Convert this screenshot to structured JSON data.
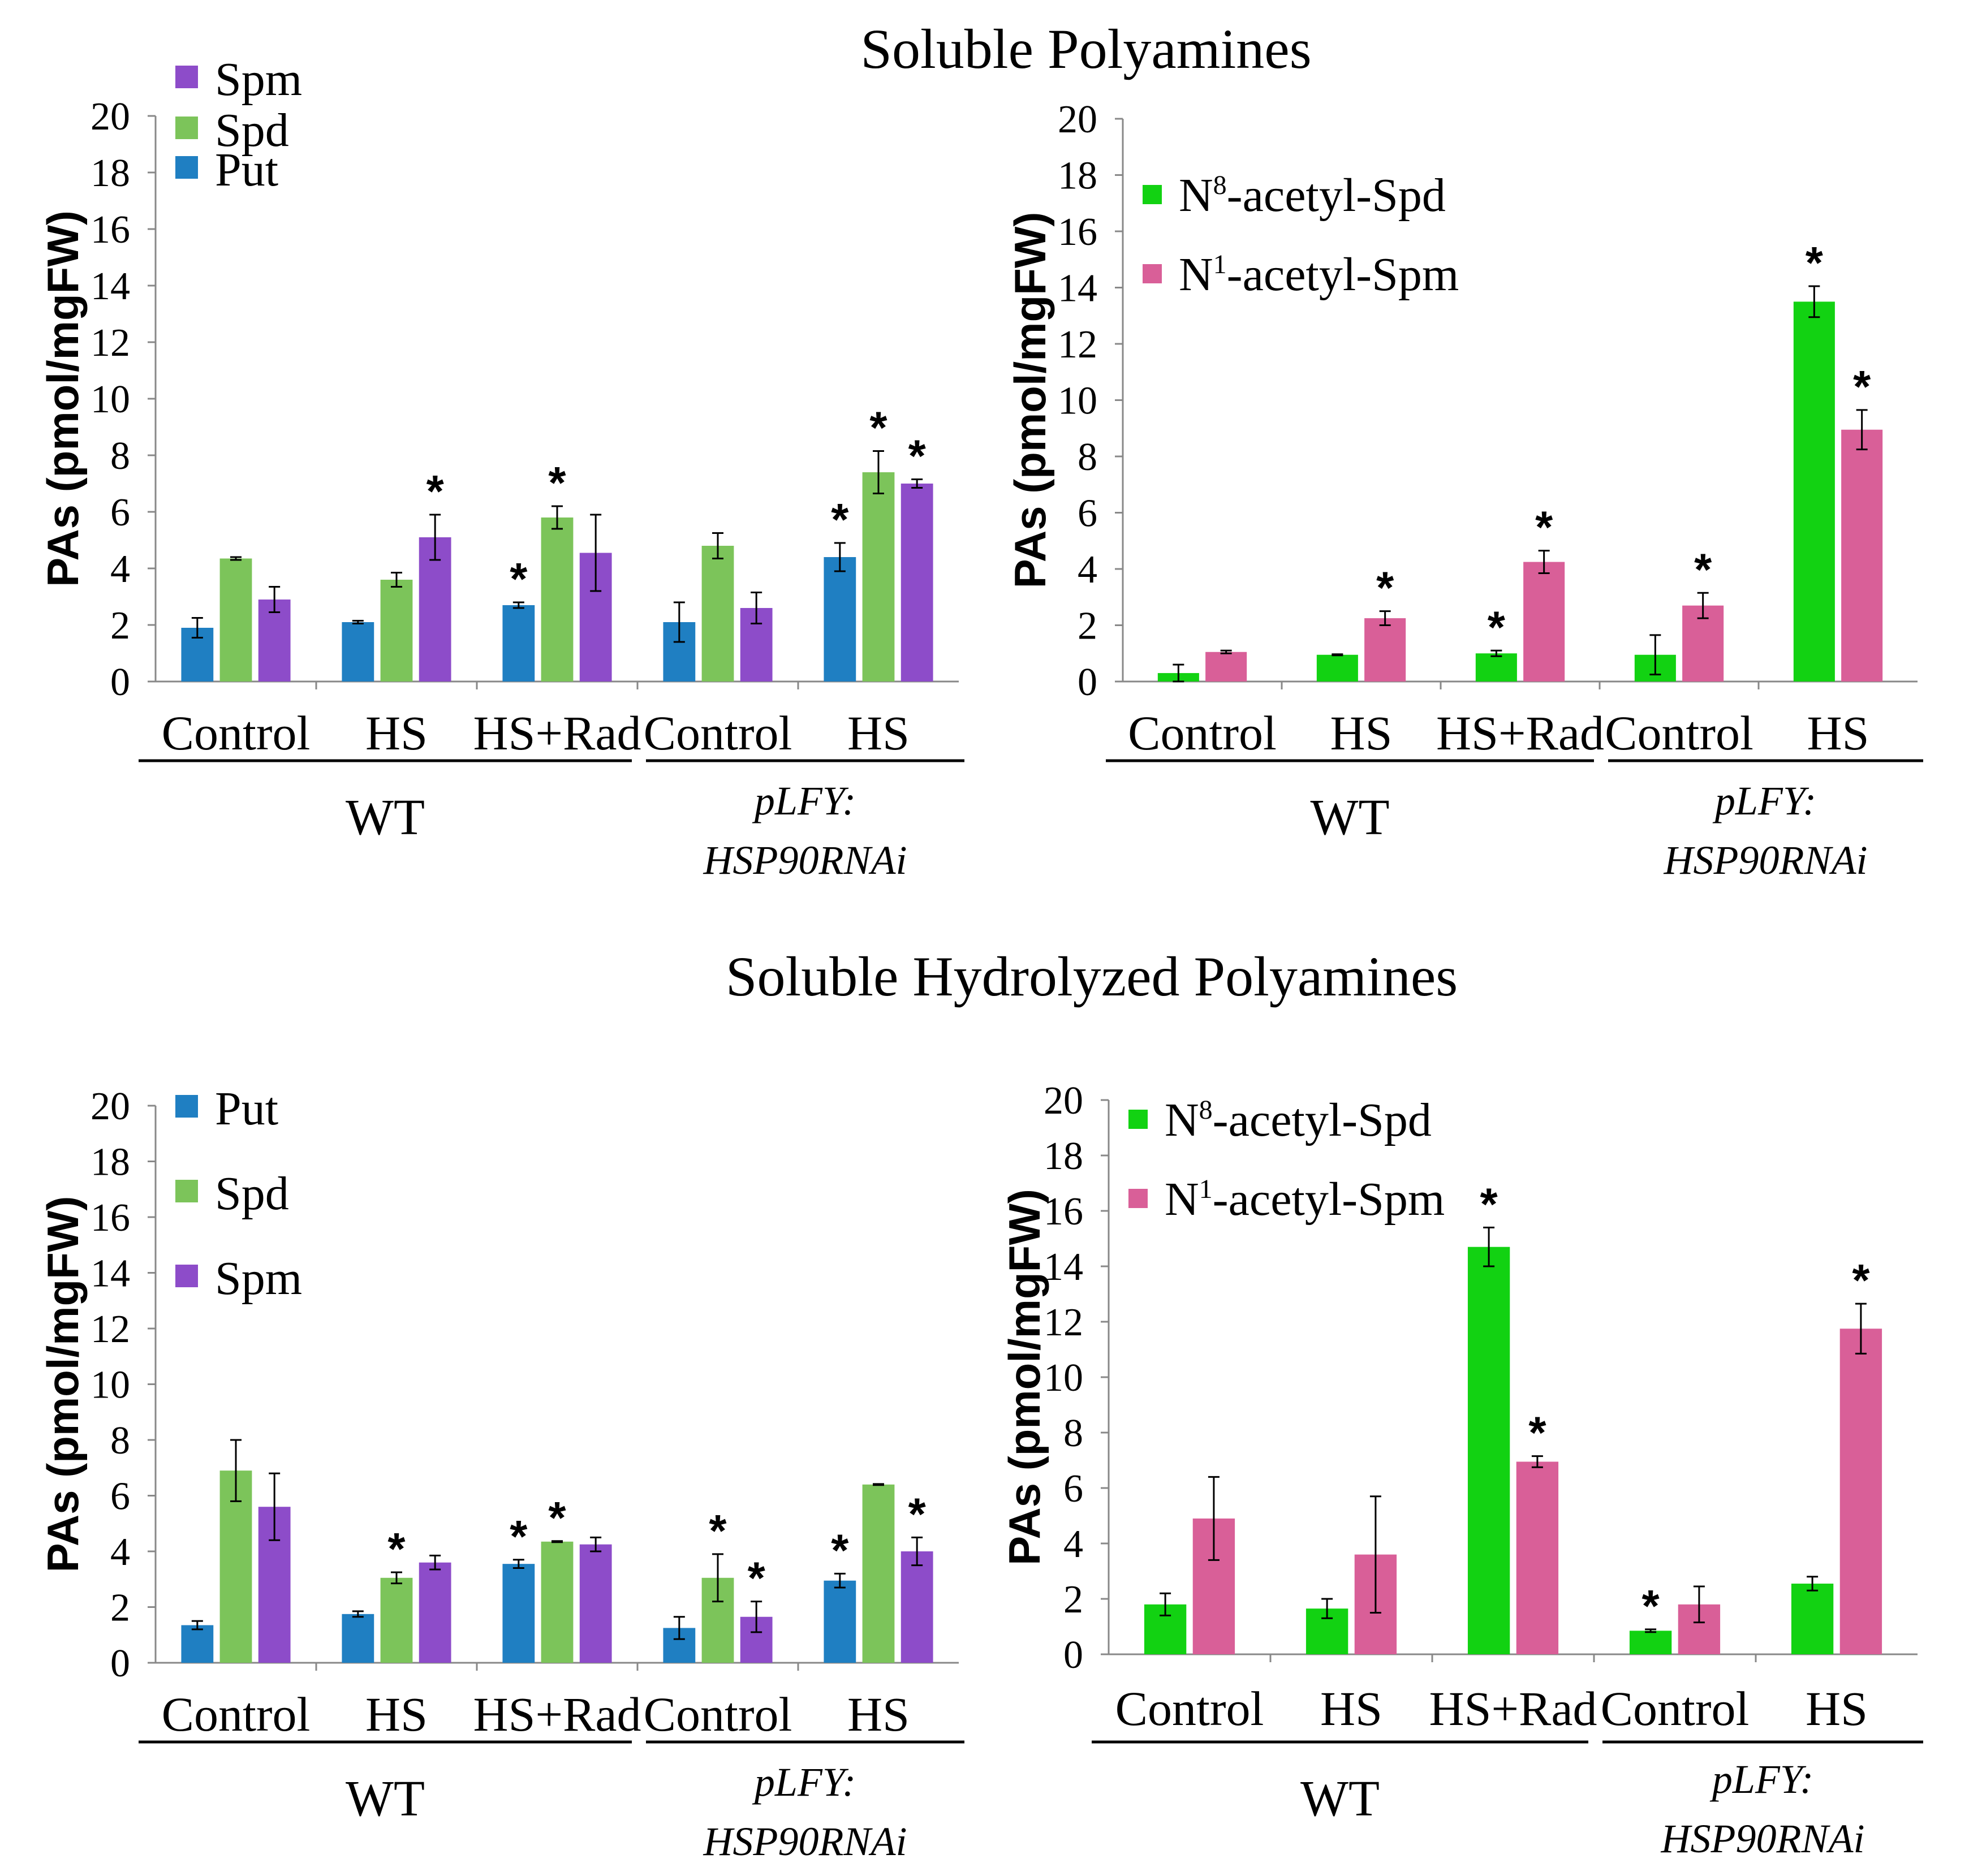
{
  "figure": {
    "section_titles": [
      "Soluble Polyamines",
      "Soluble Hydrolyzed Polyamines"
    ]
  },
  "chart_data": [
    {
      "type": "bar",
      "section": "Soluble Polyamines",
      "ylabel": "PAs (pmol/mgFW)",
      "ylim": [
        0,
        20
      ],
      "yticks": [
        0,
        2,
        4,
        6,
        8,
        10,
        12,
        14,
        16,
        18,
        20
      ],
      "categories": [
        "Control",
        "HS",
        "HS+Rad",
        "Control",
        "HS"
      ],
      "groups": [
        {
          "label": "WT",
          "italic": false,
          "start": 0,
          "end": 2
        },
        {
          "label": "pLFY:\nHSP90RNAi",
          "italic": true,
          "start": 3,
          "end": 4
        }
      ],
      "legend": {
        "position": "top-left"
      },
      "series": [
        {
          "name": "Put",
          "color": "#1f7fc2",
          "values": [
            1.9,
            2.1,
            2.7,
            2.1,
            4.4
          ],
          "errors": [
            0.35,
            0.05,
            0.1,
            0.7,
            0.5
          ],
          "sig": [
            false,
            false,
            true,
            false,
            true
          ]
        },
        {
          "name": "Spd",
          "color": "#7cc45a",
          "values": [
            4.35,
            3.6,
            5.8,
            4.8,
            7.4
          ],
          "errors": [
            0.05,
            0.25,
            0.4,
            0.45,
            0.75
          ],
          "sig": [
            false,
            false,
            true,
            false,
            true
          ]
        },
        {
          "name": "Spm",
          "color": "#8d4cc9",
          "values": [
            2.9,
            5.1,
            4.55,
            2.6,
            7.0
          ],
          "errors": [
            0.45,
            0.8,
            1.35,
            0.55,
            0.15
          ],
          "sig": [
            false,
            true,
            false,
            false,
            true
          ]
        }
      ]
    },
    {
      "type": "bar",
      "section": "Soluble Polyamines",
      "ylabel": "PAs (pmol/mgFW)",
      "ylim": [
        0,
        20
      ],
      "yticks": [
        0,
        2,
        4,
        6,
        8,
        10,
        12,
        14,
        16,
        18,
        20
      ],
      "categories": [
        "Control",
        "HS",
        "HS+Rad",
        "Control",
        "HS"
      ],
      "groups": [
        {
          "label": "WT",
          "italic": false,
          "start": 0,
          "end": 2
        },
        {
          "label": "pLFY:\nHSP90RNAi",
          "italic": true,
          "start": 3,
          "end": 4
        }
      ],
      "legend": {
        "position": "top-left"
      },
      "series": [
        {
          "name": "N8-acetyl-Spd",
          "base": "N",
          "sup": "8",
          "rest": "-acetyl-Spd",
          "color": "#12d212",
          "values": [
            0.3,
            0.95,
            1.0,
            0.95,
            13.5
          ],
          "errors": [
            0.3,
            0.02,
            0.1,
            0.7,
            0.55
          ],
          "sig": [
            false,
            false,
            true,
            false,
            true
          ]
        },
        {
          "name": "N1-acetyl-Spm",
          "base": "N",
          "sup": "1",
          "rest": "-acetyl-Spm",
          "color": "#d95f98",
          "values": [
            1.05,
            2.25,
            4.25,
            2.7,
            8.95
          ],
          "errors": [
            0.05,
            0.25,
            0.4,
            0.45,
            0.7
          ],
          "sig": [
            false,
            true,
            true,
            true,
            true
          ]
        }
      ]
    },
    {
      "type": "bar",
      "section": "Soluble Hydrolyzed Polyamines",
      "ylabel": "PAs (pmol/mgFW)",
      "ylim": [
        0,
        20
      ],
      "yticks": [
        0,
        2,
        4,
        6,
        8,
        10,
        12,
        14,
        16,
        18,
        20
      ],
      "categories": [
        "Control",
        "HS",
        "HS+Rad",
        "Control",
        "HS"
      ],
      "groups": [
        {
          "label": "WT",
          "italic": false,
          "start": 0,
          "end": 2
        },
        {
          "label": "pLFY:\nHSP90RNAi",
          "italic": true,
          "start": 3,
          "end": 4
        }
      ],
      "legend": {
        "position": "top-left"
      },
      "series": [
        {
          "name": "Put",
          "color": "#1f7fc2",
          "values": [
            1.35,
            1.75,
            3.55,
            1.25,
            2.95
          ],
          "errors": [
            0.15,
            0.1,
            0.15,
            0.4,
            0.25
          ],
          "sig": [
            false,
            false,
            true,
            false,
            true
          ]
        },
        {
          "name": "Spd",
          "color": "#7cc45a",
          "values": [
            6.9,
            3.05,
            4.35,
            3.05,
            6.4
          ],
          "errors": [
            1.1,
            0.2,
            0.02,
            0.85,
            0.02
          ],
          "sig": [
            false,
            true,
            true,
            true,
            false
          ]
        },
        {
          "name": "Spm",
          "color": "#8d4cc9",
          "values": [
            5.6,
            3.6,
            4.25,
            1.65,
            4.0
          ],
          "errors": [
            1.2,
            0.25,
            0.25,
            0.55,
            0.5
          ],
          "sig": [
            false,
            false,
            false,
            true,
            true
          ]
        }
      ]
    },
    {
      "type": "bar",
      "section": "Soluble Hydrolyzed Polyamines",
      "ylabel": "PAs (pmol/mgFW)",
      "ylim": [
        0,
        20
      ],
      "yticks": [
        0,
        2,
        4,
        6,
        8,
        10,
        12,
        14,
        16,
        18,
        20
      ],
      "categories": [
        "Control",
        "HS",
        "HS+Rad",
        "Control",
        "HS"
      ],
      "groups": [
        {
          "label": "WT",
          "italic": false,
          "start": 0,
          "end": 2
        },
        {
          "label": "pLFY:\nHSP90RNAi",
          "italic": true,
          "start": 3,
          "end": 4
        }
      ],
      "legend": {
        "position": "top-left"
      },
      "series": [
        {
          "name": "N8-acetyl-Spd",
          "base": "N",
          "sup": "8",
          "rest": "-acetyl-Spd",
          "color": "#12d212",
          "values": [
            1.8,
            1.65,
            14.7,
            0.85,
            2.55
          ],
          "errors": [
            0.4,
            0.35,
            0.7,
            0.05,
            0.25
          ],
          "sig": [
            false,
            false,
            true,
            true,
            false
          ]
        },
        {
          "name": "N1-acetyl-Spm",
          "base": "N",
          "sup": "1",
          "rest": "-acetyl-Spm",
          "color": "#d95f98",
          "values": [
            4.9,
            3.6,
            6.95,
            1.8,
            11.75
          ],
          "errors": [
            1.5,
            2.1,
            0.2,
            0.65,
            0.9
          ],
          "sig": [
            false,
            false,
            true,
            false,
            true
          ]
        }
      ]
    }
  ]
}
